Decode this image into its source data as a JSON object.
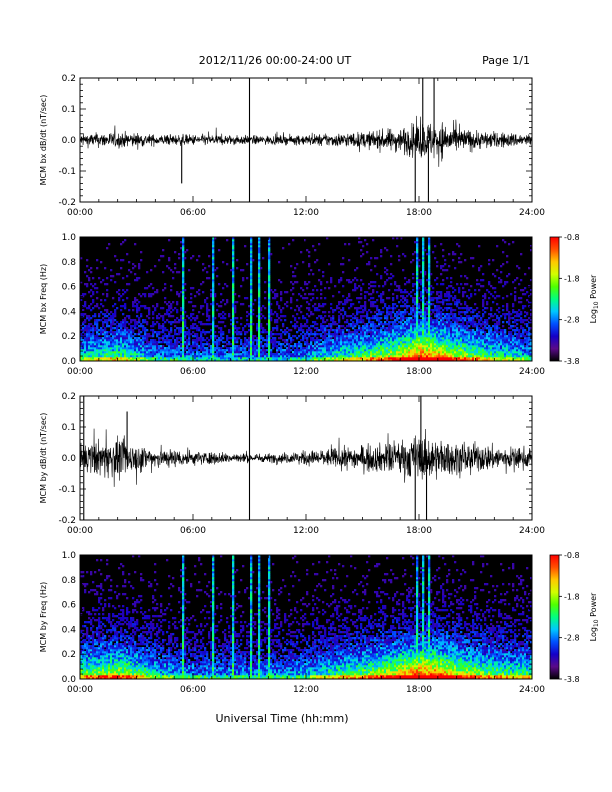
{
  "header": {
    "title": "2012/11/26  00:00-24:00 UT",
    "page": "Page 1/1"
  },
  "xlabel": "Universal Time (hh:mm)",
  "colorbar": {
    "label_base": "Log",
    "label_sub": "10",
    "label_rest": " Power",
    "tick_labels": [
      "-0.8",
      "-1.8",
      "-2.8",
      "-3.8"
    ],
    "range": [
      -3.8,
      -0.8
    ],
    "colormap": [
      "#000000",
      "#5a0a8a",
      "#1400c8",
      "#0050ff",
      "#00c8ff",
      "#00ff80",
      "#50ff00",
      "#d2ff00",
      "#ffc800",
      "#ff5000",
      "#ff0000"
    ]
  },
  "chart_data": [
    {
      "type": "line",
      "name": "bx-time-series",
      "ylabel": "MCM bx dB/dt (nT/sec)",
      "xlim": [
        0,
        24
      ],
      "ylim": [
        -0.2,
        0.2
      ],
      "x_tick_labels": [
        "00:00",
        "06:00",
        "12:00",
        "18:00",
        "24:00"
      ],
      "y_ticks": [
        -0.2,
        -0.1,
        0.0,
        0.1,
        0.2
      ],
      "y_tick_labels": [
        "-0.2",
        "-0.1",
        "0.0",
        "0.1",
        "0.2"
      ],
      "envelope": {
        "x": [
          0,
          1,
          2,
          3,
          4,
          5,
          6,
          7,
          8,
          9,
          10,
          11,
          12,
          13,
          14,
          15,
          16,
          17,
          18,
          19,
          20,
          21,
          22,
          23,
          24
        ],
        "y": [
          0.035,
          0.04,
          0.045,
          0.04,
          0.03,
          0.03,
          0.03,
          0.03,
          0.028,
          0.025,
          0.025,
          0.025,
          0.03,
          0.035,
          0.04,
          0.045,
          0.055,
          0.07,
          0.1,
          0.11,
          0.07,
          0.055,
          0.045,
          0.04,
          0.035
        ]
      },
      "spikes": [
        {
          "x": 5.4,
          "y": -0.14
        },
        {
          "x": 9.0,
          "y": 0.2
        },
        {
          "x": 9.0,
          "y": -0.2
        },
        {
          "x": 17.8,
          "y": -0.2
        },
        {
          "x": 18.2,
          "y": 0.2
        },
        {
          "x": 18.5,
          "y": -0.2
        },
        {
          "x": 18.8,
          "y": 0.2
        }
      ]
    },
    {
      "type": "heatmap",
      "name": "bx-spectrogram",
      "ylabel": "MCM bx Freq (Hz)",
      "xlim": [
        0,
        24
      ],
      "ylim": [
        0,
        1
      ],
      "x_tick_labels": [
        "00:00",
        "06:00",
        "12:00",
        "18:00",
        "24:00"
      ],
      "y_ticks": [
        0.0,
        0.2,
        0.4,
        0.6,
        0.8,
        1.0
      ],
      "y_tick_labels": [
        "0.0",
        "0.2",
        "0.4",
        "0.6",
        "0.8",
        "1.0"
      ],
      "activity": {
        "x": [
          0,
          1,
          2,
          3,
          4,
          5,
          6,
          7,
          8,
          9,
          10,
          11,
          12,
          13,
          14,
          15,
          16,
          17,
          18,
          19,
          20,
          21,
          22,
          23,
          24
        ],
        "level": [
          0.45,
          0.5,
          0.55,
          0.45,
          0.35,
          0.35,
          0.3,
          0.3,
          0.3,
          0.3,
          0.3,
          0.3,
          0.35,
          0.45,
          0.5,
          0.55,
          0.65,
          0.75,
          0.95,
          0.85,
          0.7,
          0.6,
          0.5,
          0.45,
          0.4
        ]
      },
      "stripes": [
        5.4,
        7.0,
        8.1,
        9.0,
        9.5,
        10.0,
        17.8,
        18.2,
        18.5
      ]
    },
    {
      "type": "line",
      "name": "by-time-series",
      "ylabel": "MCM by dB/dt (nT/sec)",
      "xlim": [
        0,
        24
      ],
      "ylim": [
        -0.2,
        0.2
      ],
      "x_tick_labels": [
        "00:00",
        "06:00",
        "12:00",
        "18:00",
        "24:00"
      ],
      "y_ticks": [
        -0.2,
        -0.1,
        0.0,
        0.1,
        0.2
      ],
      "y_tick_labels": [
        "-0.2",
        "-0.1",
        "0.0",
        "0.1",
        "0.2"
      ],
      "envelope": {
        "x": [
          0,
          1,
          2,
          3,
          4,
          5,
          6,
          7,
          8,
          9,
          10,
          11,
          12,
          13,
          14,
          15,
          16,
          17,
          18,
          19,
          20,
          21,
          22,
          23,
          24
        ],
        "y": [
          0.08,
          0.1,
          0.11,
          0.08,
          0.06,
          0.05,
          0.04,
          0.035,
          0.03,
          0.025,
          0.025,
          0.03,
          0.04,
          0.05,
          0.06,
          0.07,
          0.08,
          0.1,
          0.13,
          0.11,
          0.09,
          0.08,
          0.07,
          0.06,
          0.06
        ]
      },
      "spikes": [
        {
          "x": 0.2,
          "y": 0.2
        },
        {
          "x": 0.2,
          "y": -0.2
        },
        {
          "x": 2.5,
          "y": 0.15
        },
        {
          "x": 9.0,
          "y": 0.2
        },
        {
          "x": 9.0,
          "y": -0.2
        },
        {
          "x": 17.8,
          "y": -0.2
        },
        {
          "x": 18.1,
          "y": 0.2
        },
        {
          "x": 18.4,
          "y": -0.2
        }
      ]
    },
    {
      "type": "heatmap",
      "name": "by-spectrogram",
      "ylabel": "MCM by Freq (Hz)",
      "xlim": [
        0,
        24
      ],
      "ylim": [
        0,
        1
      ],
      "x_tick_labels": [
        "00:00",
        "06:00",
        "12:00",
        "18:00",
        "24:00"
      ],
      "y_ticks": [
        0.0,
        0.2,
        0.4,
        0.6,
        0.8,
        1.0
      ],
      "y_tick_labels": [
        "0.0",
        "0.2",
        "0.4",
        "0.6",
        "0.8",
        "1.0"
      ],
      "activity": {
        "x": [
          0,
          1,
          2,
          3,
          4,
          5,
          6,
          7,
          8,
          9,
          10,
          11,
          12,
          13,
          14,
          15,
          16,
          17,
          18,
          19,
          20,
          21,
          22,
          23,
          24
        ],
        "level": [
          0.6,
          0.65,
          0.7,
          0.6,
          0.45,
          0.4,
          0.35,
          0.35,
          0.35,
          0.35,
          0.35,
          0.35,
          0.4,
          0.5,
          0.55,
          0.6,
          0.7,
          0.8,
          0.95,
          0.9,
          0.75,
          0.65,
          0.6,
          0.55,
          0.55
        ]
      },
      "stripes": [
        5.4,
        7.0,
        8.1,
        9.0,
        9.5,
        10.0,
        17.8,
        18.2,
        18.5
      ]
    }
  ]
}
